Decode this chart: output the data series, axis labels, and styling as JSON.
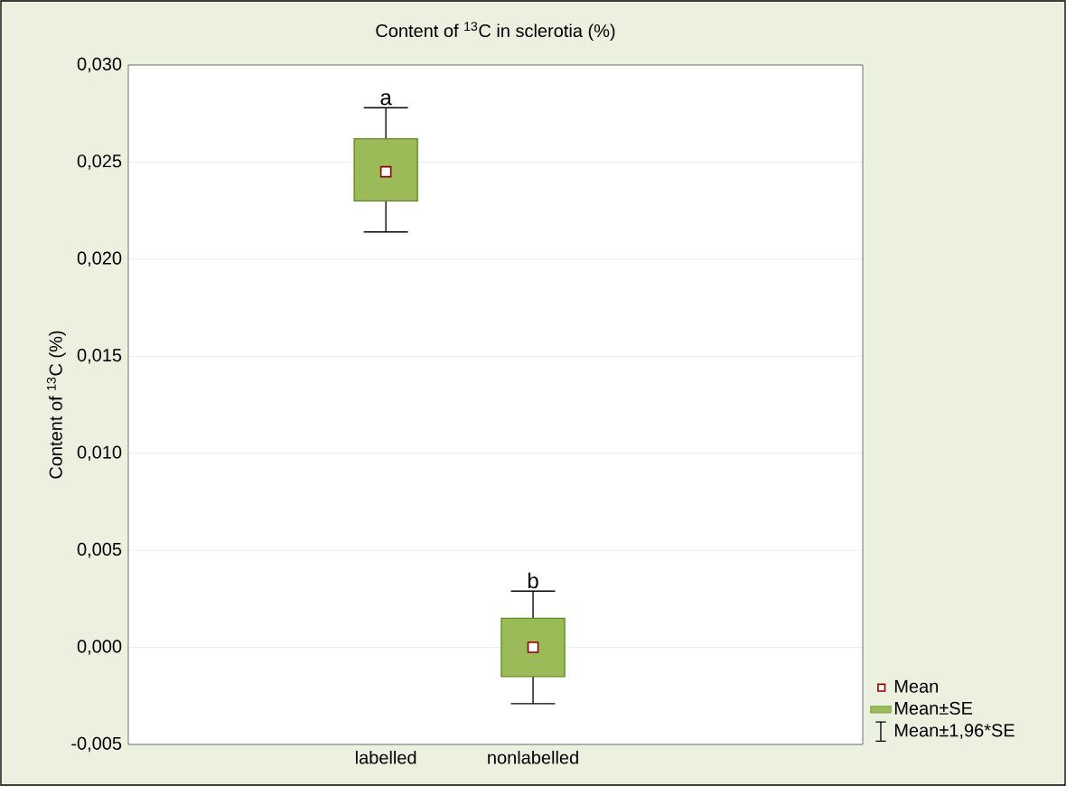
{
  "chart_data": {
    "type": "box",
    "title": "Content of $^{13}$C in sclerotia (%)",
    "ylabel": "Content of $^{13}$C (%)",
    "categories": [
      "labelled",
      "nonlabelled"
    ],
    "series": [
      {
        "name": "Mean±SE",
        "color": "#9bbb59",
        "boxes": [
          {
            "low": 0.0214,
            "q1": 0.023,
            "median": 0.0245,
            "q3": 0.0262,
            "high": 0.0278
          },
          {
            "low": -0.0029,
            "q1": -0.0015,
            "median": 0.0,
            "q3": 0.0015,
            "high": 0.0029
          }
        ]
      }
    ],
    "ylim": [
      -0.005,
      0.03
    ],
    "yticks": [
      {
        "value": -0.005,
        "label": "-0,005"
      },
      {
        "value": 0,
        "label": "0,000"
      },
      {
        "value": 0.005,
        "label": "0,005"
      },
      {
        "value": 0.01,
        "label": "0,010"
      },
      {
        "value": 0.015,
        "label": "0,015"
      },
      {
        "value": 0.02,
        "label": "0,020"
      },
      {
        "value": 0.025,
        "label": "0,025"
      },
      {
        "value": 0.03,
        "label": "0,030"
      }
    ],
    "grid": "y",
    "legend": "bottom right",
    "annotations": [
      "a",
      "b",
      "Mean",
      "Mean±1,96*SE"
    ]
  }
}
